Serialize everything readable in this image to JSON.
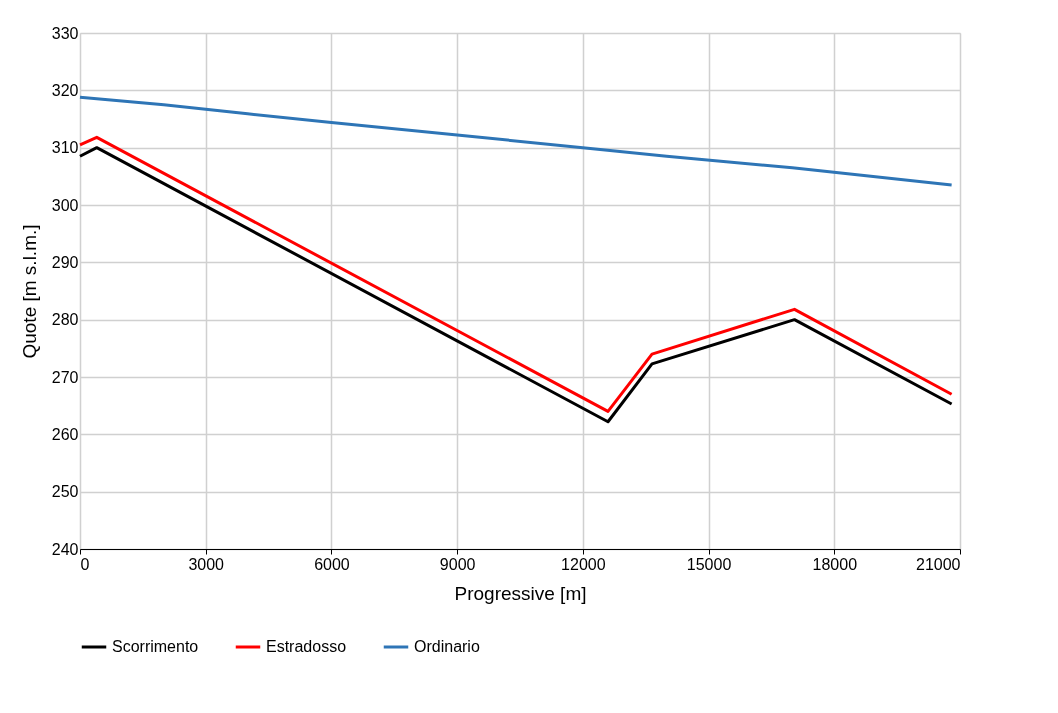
{
  "chart_data": {
    "type": "line",
    "xlabel": "Progressive [m]",
    "ylabel": "Quote [m s.l.m.]",
    "xlim": [
      0,
      21000
    ],
    "xticks": [
      0,
      3000,
      6000,
      9000,
      12000,
      15000,
      18000,
      21000
    ],
    "ylim": [
      240,
      330
    ],
    "yticks": [
      240,
      250,
      260,
      270,
      280,
      290,
      300,
      310,
      320,
      330
    ],
    "grid": true,
    "legend": "bottom",
    "marker": "none",
    "line_style": "solid",
    "series": [
      {
        "name": "Scorrimento",
        "color": "#000000",
        "x": [
          0,
          400,
          12600,
          13650,
          17050,
          20800
        ],
        "values": [
          308.5,
          310,
          262.2,
          272.3,
          280,
          265.3
        ]
      },
      {
        "name": "Estradosso",
        "color": "#ff0000",
        "x": [
          0,
          400,
          12600,
          13650,
          17050,
          20800
        ],
        "values": [
          310.5,
          311.8,
          264,
          274,
          281.8,
          267
        ]
      },
      {
        "name": "Ordinario",
        "color": "#2e75b6",
        "x": [
          0,
          2000,
          4000,
          6000,
          9000,
          12000,
          14000,
          17000,
          20800
        ],
        "values": [
          318.8,
          317.5,
          315.9,
          314.4,
          312.2,
          310,
          308.5,
          306.5,
          303.5
        ]
      }
    ]
  }
}
